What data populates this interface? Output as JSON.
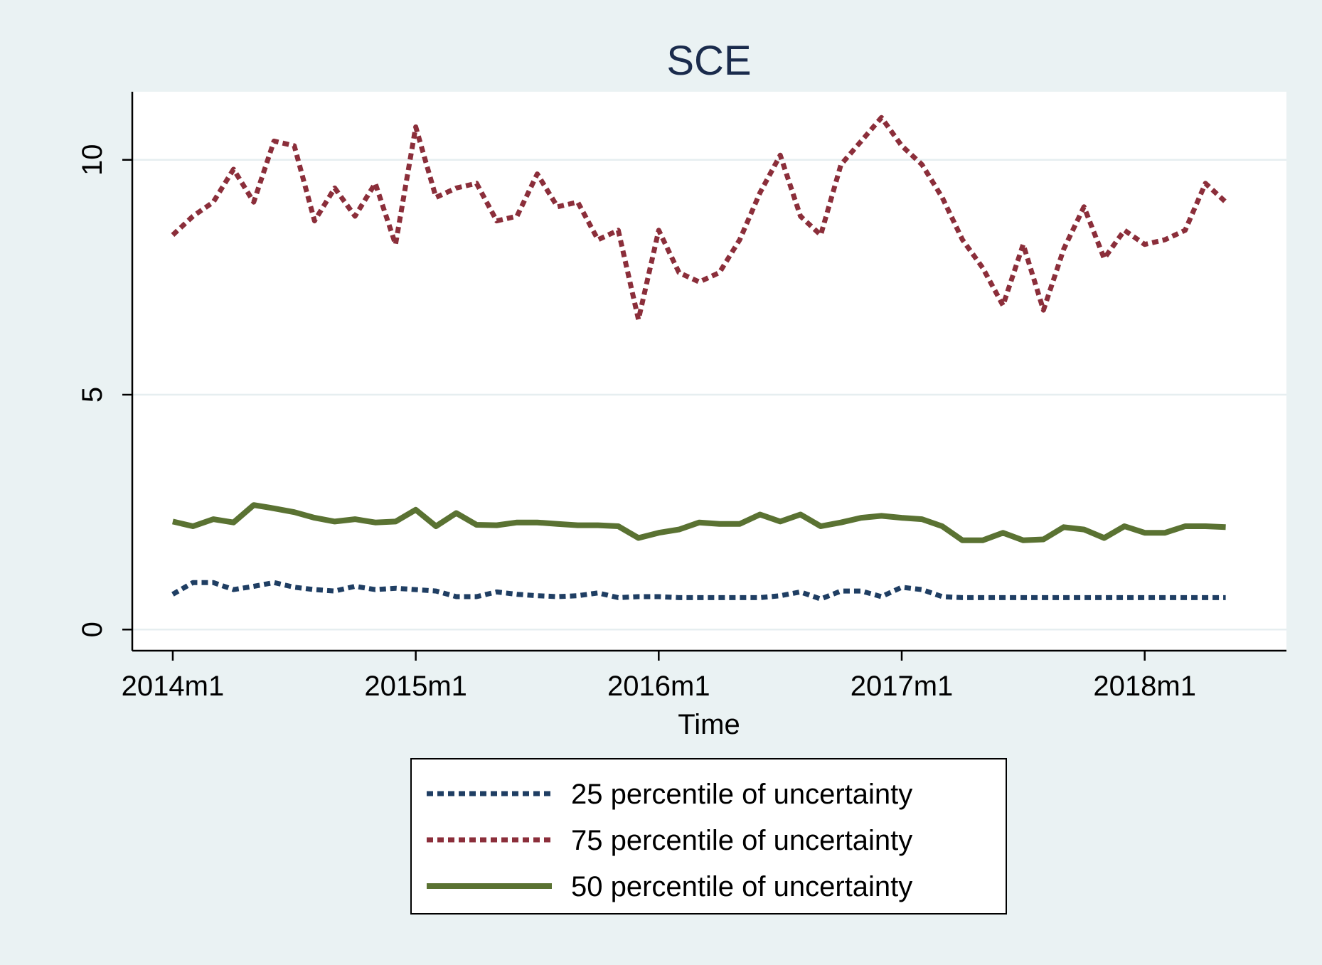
{
  "chart_data": {
    "type": "line",
    "title": "SCE",
    "xlabel": "Time",
    "ylabel": "",
    "x_ticks": [
      "2014m1",
      "2015m1",
      "2016m1",
      "2017m1",
      "2018m1"
    ],
    "y_ticks": [
      "0",
      "5",
      "10"
    ],
    "ylim": [
      -0.45,
      11.45
    ],
    "xlim": [
      "2013m11",
      "2018m8"
    ],
    "grid": "horizontal",
    "legend_position": "bottom",
    "x": [
      "2014m1",
      "2014m2",
      "2014m3",
      "2014m4",
      "2014m5",
      "2014m6",
      "2014m7",
      "2014m8",
      "2014m9",
      "2014m10",
      "2014m11",
      "2014m12",
      "2015m1",
      "2015m2",
      "2015m3",
      "2015m4",
      "2015m5",
      "2015m6",
      "2015m7",
      "2015m8",
      "2015m9",
      "2015m10",
      "2015m11",
      "2015m12",
      "2016m1",
      "2016m2",
      "2016m3",
      "2016m4",
      "2016m5",
      "2016m6",
      "2016m7",
      "2016m8",
      "2016m9",
      "2016m10",
      "2016m11",
      "2016m12",
      "2017m1",
      "2017m2",
      "2017m3",
      "2017m4",
      "2017m5",
      "2017m6",
      "2017m7",
      "2017m8",
      "2017m9",
      "2017m10",
      "2017m11",
      "2017m12",
      "2018m1",
      "2018m2",
      "2018m3",
      "2018m4",
      "2018m5"
    ],
    "series": [
      {
        "name": "25 percentile of uncertainty",
        "color": "#1f3e63",
        "style": "dotted",
        "values": [
          0.75,
          1.0,
          1.0,
          0.85,
          0.92,
          1.0,
          0.9,
          0.85,
          0.82,
          0.92,
          0.85,
          0.88,
          0.85,
          0.82,
          0.7,
          0.7,
          0.8,
          0.75,
          0.72,
          0.7,
          0.72,
          0.78,
          0.68,
          0.7,
          0.7,
          0.68,
          0.68,
          0.68,
          0.68,
          0.68,
          0.72,
          0.8,
          0.65,
          0.82,
          0.82,
          0.7,
          0.9,
          0.85,
          0.7,
          0.68,
          0.68,
          0.68,
          0.68,
          0.68,
          0.68,
          0.68,
          0.68,
          0.68,
          0.68,
          0.68,
          0.68,
          0.68,
          0.68
        ]
      },
      {
        "name": "75 percentile of uncertainty",
        "color": "#8b2e3a",
        "style": "dotted",
        "values": [
          8.4,
          8.8,
          9.1,
          9.8,
          9.1,
          10.4,
          10.3,
          8.7,
          9.4,
          8.8,
          9.5,
          8.2,
          10.7,
          9.2,
          9.4,
          9.5,
          8.7,
          8.8,
          9.7,
          9.0,
          9.1,
          8.3,
          8.5,
          6.6,
          8.5,
          7.6,
          7.4,
          7.6,
          8.3,
          9.3,
          10.1,
          8.8,
          8.4,
          9.9,
          10.4,
          10.9,
          10.3,
          9.9,
          9.2,
          8.3,
          7.7,
          6.9,
          8.2,
          6.8,
          8.1,
          9.0,
          7.9,
          8.5,
          8.2,
          8.3,
          8.5,
          9.5,
          9.1
        ]
      },
      {
        "name": "50 percentile of uncertainty",
        "color": "#5a7232",
        "style": "solid",
        "values": [
          2.3,
          2.2,
          2.35,
          2.28,
          2.65,
          2.58,
          2.5,
          2.38,
          2.3,
          2.35,
          2.28,
          2.3,
          2.55,
          2.2,
          2.48,
          2.23,
          2.22,
          2.28,
          2.28,
          2.25,
          2.22,
          2.22,
          2.2,
          1.95,
          2.06,
          2.13,
          2.28,
          2.25,
          2.25,
          2.45,
          2.3,
          2.45,
          2.2,
          2.28,
          2.38,
          2.42,
          2.38,
          2.35,
          2.2,
          1.9,
          1.9,
          2.06,
          1.9,
          1.92,
          2.18,
          2.13,
          1.95,
          2.2,
          2.06,
          2.06,
          2.2,
          2.2,
          2.18
        ]
      }
    ]
  }
}
